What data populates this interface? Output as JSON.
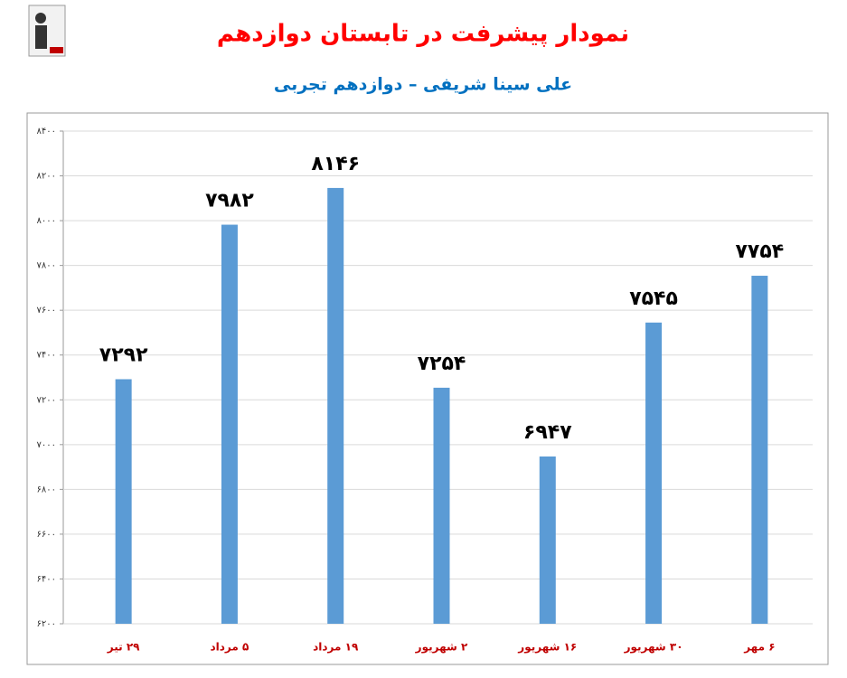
{
  "chart_data": {
    "type": "bar",
    "title": "نمودار پیشرفت در تابستان دوازدهم",
    "subtitle": "علی سینا شریفی – دوازدهم تجربی",
    "categories": [
      "۲۹ تیر",
      "۵ مرداد",
      "۱۹ مرداد",
      "۲ شهریور",
      "۱۶ شهریور",
      "۳۰ شهریور",
      "۶ مهر"
    ],
    "values": [
      7292,
      7982,
      8146,
      7254,
      6947,
      7545,
      7754
    ],
    "value_labels": [
      "۷۲۹۲",
      "۷۹۸۲",
      "۸۱۴۶",
      "۷۲۵۴",
      "۶۹۴۷",
      "۷۵۴۵",
      "۷۷۵۴"
    ],
    "color": "#5b9bd5",
    "ylim": [
      6200,
      8400
    ],
    "yticks": [
      {
        "value": 6200,
        "label": "۶۲۰۰"
      },
      {
        "value": 6400,
        "label": "۶۴۰۰"
      },
      {
        "value": 6600,
        "label": "۶۶۰۰"
      },
      {
        "value": 6800,
        "label": "۶۸۰۰"
      },
      {
        "value": 7000,
        "label": "۷۰۰۰"
      },
      {
        "value": 7200,
        "label": "۷۲۰۰"
      },
      {
        "value": 7400,
        "label": "۷۴۰۰"
      },
      {
        "value": 7600,
        "label": "۷۶۰۰"
      },
      {
        "value": 7800,
        "label": "۷۸۰۰"
      },
      {
        "value": 8000,
        "label": "۸۰۰۰"
      },
      {
        "value": 8200,
        "label": "۸۲۰۰"
      },
      {
        "value": 8400,
        "label": "۸۴۰۰"
      }
    ],
    "grid": true
  }
}
